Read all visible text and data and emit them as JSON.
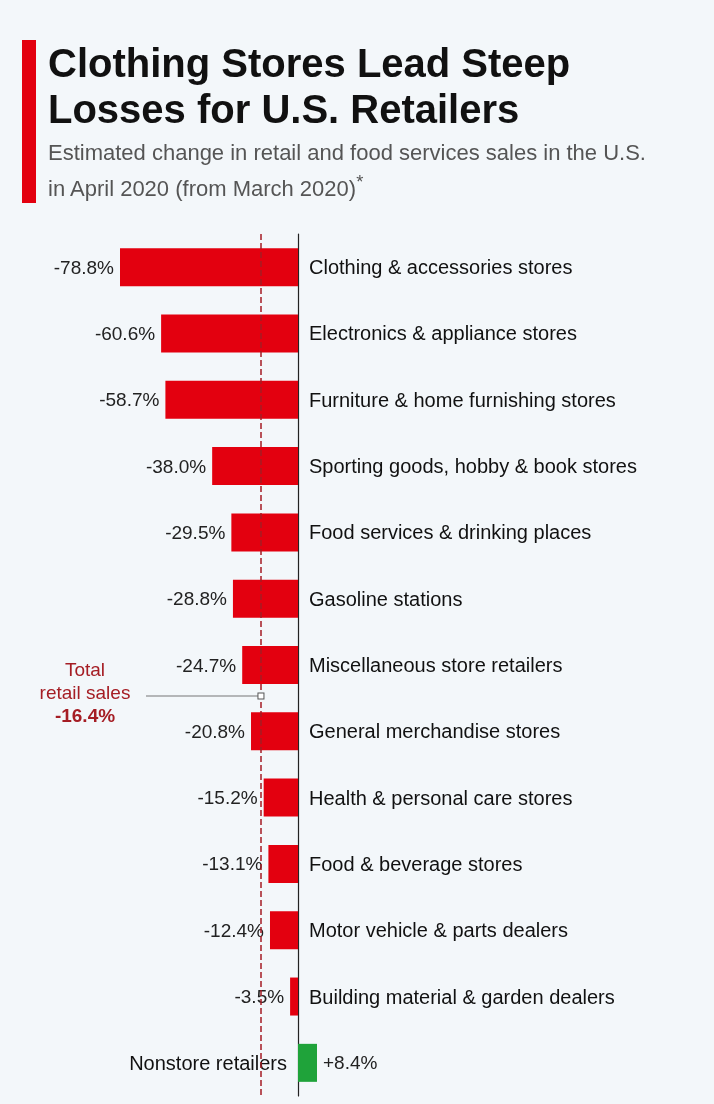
{
  "chart_data": {
    "type": "bar",
    "orientation": "horizontal",
    "title": "Clothing Stores Lead Steep Losses for U.S. Retailers",
    "subtitle": "Estimated change in retail and food services sales in the U.S. in April 2020 (from March 2020)$^{*}$",
    "categories": [
      "Clothing & accessories stores",
      "Electronics & appliance stores",
      "Furniture & home furnishing stores",
      "Sporting goods, hobby & book stores",
      "Food services & drinking places",
      "Gasoline stations",
      "Miscellaneous store retailers",
      "General merchandise stores",
      "Health & personal care stores",
      "Food & beverage stores",
      "Motor vehicle & parts dealers",
      "Building material & garden dealers",
      "Nonstore retailers"
    ],
    "values": [
      -78.8,
      -60.6,
      -58.7,
      -38.0,
      -29.5,
      -28.8,
      -24.7,
      -20.8,
      -15.2,
      -13.1,
      -12.4,
      -3.5,
      8.4
    ],
    "colors": [
      "#e3000f",
      "#e3000f",
      "#e3000f",
      "#e3000f",
      "#e3000f",
      "#e3000f",
      "#e3000f",
      "#e3000f",
      "#e3000f",
      "#e3000f",
      "#e3000f",
      "#e3000f",
      "#1fa33a"
    ],
    "value_labels": [
      "-78.8%",
      "-60.6%",
      "-58.7%",
      "-38.0%",
      "-29.5%",
      "-28.8%",
      "-24.7%",
      "-20.8%",
      "-15.2%",
      "-13.1%",
      "-12.4%",
      "-3.5%",
      "+8.4%"
    ],
    "ref_lines": [
      {
        "axis": "x",
        "value": -16.4,
        "label": "Total\nretail sales\n-16.4%",
        "color": "#a51d24",
        "line_style": "dashed"
      }
    ]
  }
}
